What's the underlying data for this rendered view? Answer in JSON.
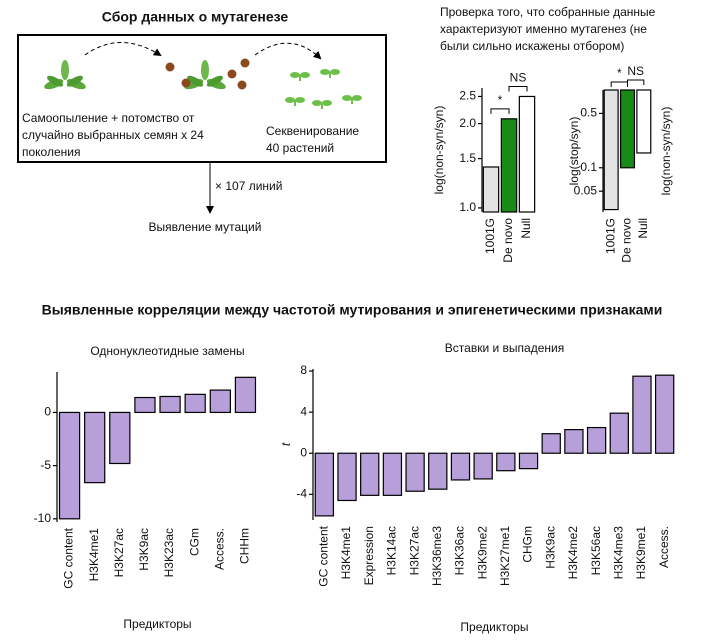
{
  "diagram": {
    "title": "Сбор данных о мутагенезе",
    "left_text": [
      "Самоопыление + потомство от",
      "случайно выбранных семян x 24",
      "поколения"
    ],
    "right_text": [
      "Секвенирование",
      "40 растений"
    ],
    "lines_count": "× 107 линий",
    "result": "Выявление  мутаций",
    "check_text": [
      "Проверка того, что собранные данные",
      "характеризуют именно мутагенез (не",
      "были сильно искажены отбором)"
    ],
    "correlations_title": "Выявленные корреляции между частотой мутирования и эпигенетическими признаками"
  },
  "chart_data": [
    {
      "type": "bar",
      "ylabel": "log(non-syn/syn)",
      "log_y": true,
      "categories": [
        "1001G",
        "De novo",
        "Null"
      ],
      "values": [
        1.4,
        2.08,
        2.5
      ],
      "colors": [
        "#e3e3e3",
        "#178a17",
        "#ffffff"
      ],
      "ylim": [
        0.967,
        2.68
      ],
      "yticks": [
        {
          "value": 1.0,
          "label": "1.0"
        },
        1.5,
        {
          "value": 2,
          "label": "2.0"
        },
        2.5
      ],
      "annotations": [
        "*",
        "NS"
      ]
    },
    {
      "type": "bar",
      "ylabel": "log(stop/syn)",
      "y2label": "log(non-syn/syn)",
      "log_y": true,
      "bars_from": "top",
      "categories": [
        "1001G",
        "De novo",
        "Null"
      ],
      "values": [
        0.029,
        0.1,
        0.155
      ],
      "colors": [
        "#e3e3e3",
        "#178a17",
        "#ffffff"
      ],
      "ylim": [
        0.027,
        1
      ],
      "yticks": [
        0.05,
        0.1,
        0.5
      ],
      "annotations": [
        "*",
        "NS"
      ]
    },
    {
      "type": "bar",
      "title": "Однонуклеотидные замены",
      "xlabel": "Предикторы",
      "categories": [
        "GC content",
        "H3K4me1",
        "H3K27ac",
        "H3K9ac",
        "H3K23ac",
        "CGm",
        "Access.",
        "CHHm"
      ],
      "values": [
        -10,
        -6.6,
        -4.8,
        1.4,
        1.5,
        1.7,
        2.1,
        3.3
      ],
      "color": "#b79fd9",
      "ylim": [
        -10.3,
        3.8
      ],
      "yticks": [
        -10,
        -5,
        0
      ]
    },
    {
      "type": "bar",
      "title": "Вставки и выпадения",
      "xlabel": "Предикторы",
      "ylabel": "t",
      "categories": [
        "GC content",
        "H3K4me1",
        "Expression",
        "H3K14ac",
        "H3K27ac",
        "H3K36me3",
        "H3K36ac",
        "H3K9me2",
        "H3K27me1",
        "CHGm",
        "H3K9ac",
        "H3K4me2",
        "H3K56ac",
        "H3K4me3",
        "H3K9me1",
        "Access."
      ],
      "values": [
        -6.1,
        -4.6,
        -4.1,
        -4.1,
        -3.7,
        -3.5,
        -2.6,
        -2.5,
        -1.7,
        -1.5,
        1.9,
        2.3,
        2.5,
        3.9,
        7.5,
        7.6
      ],
      "color": "#b79fd9",
      "ylim": [
        -6.5,
        8.2
      ],
      "yticks": [
        -4,
        0,
        4,
        8
      ]
    }
  ]
}
